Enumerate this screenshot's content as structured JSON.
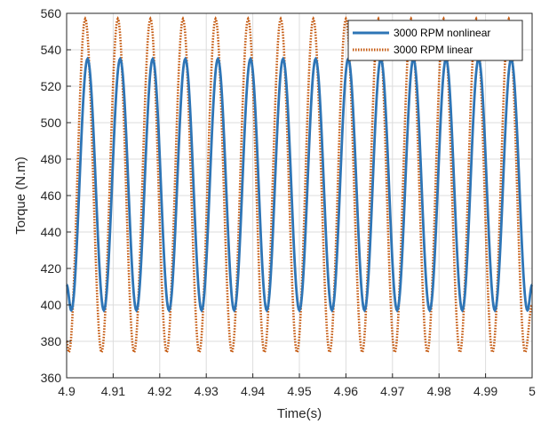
{
  "chart_data": {
    "type": "line",
    "title": "",
    "xlabel": "Time(s)",
    "ylabel": "Torque (N.m)",
    "xlim": [
      4.9,
      5.0
    ],
    "ylim": [
      360,
      560
    ],
    "xticks": [
      4.9,
      4.91,
      4.92,
      4.93,
      4.94,
      4.95,
      4.96,
      4.97,
      4.98,
      4.99,
      5.0
    ],
    "xtick_labels": [
      "4.9",
      "4.91",
      "4.92",
      "4.93",
      "4.94",
      "4.95",
      "4.96",
      "4.97",
      "4.98",
      "4.99",
      "5"
    ],
    "yticks": [
      360,
      380,
      400,
      420,
      440,
      460,
      480,
      500,
      520,
      540,
      560
    ],
    "yticks_labels": [
      "360",
      "380",
      "400",
      "420",
      "440",
      "460",
      "480",
      "500",
      "520",
      "540",
      "560"
    ],
    "grid": true,
    "legend_position": "top-right",
    "series": [
      {
        "name": "3000 RPM nonlinear",
        "style": "solid",
        "color": "#2e75b6",
        "x": [
          4.9,
          4.901,
          4.9045,
          4.908,
          4.9115,
          4.915,
          4.9185,
          4.922,
          4.9255,
          4.929,
          4.9325,
          4.936,
          4.9395,
          4.943,
          4.9465,
          4.95,
          4.9535,
          4.957,
          4.9605,
          4.964,
          4.9675,
          4.971,
          4.9745,
          4.978,
          4.9815,
          4.985,
          4.9885,
          4.992,
          4.9955,
          4.999,
          5.0
        ],
        "y": [
          411,
          397,
          535,
          397,
          535,
          397,
          535,
          397,
          535,
          397,
          535,
          397,
          535,
          397,
          535,
          397,
          535,
          397,
          535,
          397,
          535,
          397,
          535,
          397,
          535,
          397,
          535,
          397,
          535,
          397,
          411
        ]
      },
      {
        "name": "3000 RPM linear",
        "style": "dotted",
        "color": "#c55a11",
        "x": [
          4.9,
          4.9005,
          4.904,
          4.9075,
          4.911,
          4.9145,
          4.918,
          4.9215,
          4.925,
          4.9285,
          4.932,
          4.9355,
          4.939,
          4.9425,
          4.946,
          4.9495,
          4.953,
          4.9565,
          4.96,
          4.9635,
          4.967,
          4.9705,
          4.974,
          4.9775,
          4.981,
          4.9845,
          4.988,
          4.9915,
          4.995,
          4.9985,
          5.0
        ],
        "y": [
          380,
          374,
          557,
          374,
          557,
          374,
          557,
          374,
          557,
          374,
          557,
          374,
          557,
          374,
          557,
          374,
          557,
          374,
          557,
          374,
          557,
          374,
          557,
          374,
          557,
          374,
          557,
          374,
          557,
          374,
          400
        ]
      }
    ]
  },
  "colors": {
    "nonlinear": "#2e75b6",
    "linear": "#c55a11",
    "grid": "#dcdcdc",
    "axis": "#262626"
  }
}
